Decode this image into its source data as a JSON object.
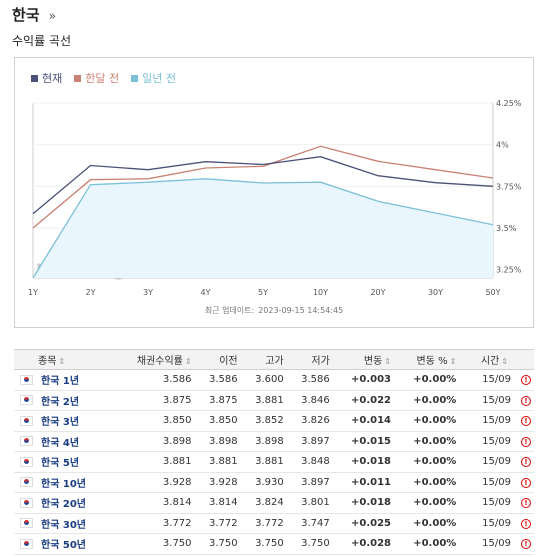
{
  "header": {
    "title": "한국",
    "breadcrumb_arrow": "»"
  },
  "subtitle": "수익률 곡선",
  "colors": {
    "current": "#4a5178",
    "month_ago": "#c98173",
    "year_ago": "#7cc0d8",
    "positive": "#d20000",
    "link": "#1a3c80"
  },
  "chart_data": {
    "type": "line",
    "x": [
      "1Y",
      "2Y",
      "3Y",
      "4Y",
      "5Y",
      "10Y",
      "20Y",
      "30Y",
      "50Y"
    ],
    "series": [
      {
        "name": "현재",
        "values": [
          3.586,
          3.875,
          3.85,
          3.898,
          3.881,
          3.928,
          3.814,
          3.772,
          3.75
        ]
      },
      {
        "name": "한달 전",
        "values": [
          3.5,
          3.79,
          3.795,
          3.86,
          3.87,
          3.99,
          3.9,
          3.85,
          3.8
        ]
      },
      {
        "name": "일년 전",
        "values": [
          3.2,
          3.76,
          3.775,
          3.795,
          3.77,
          3.775,
          3.66,
          3.59,
          3.52
        ]
      }
    ],
    "y_ticks": [
      "4.25%",
      "4%",
      "3.75%",
      "3.5%",
      "3.25%"
    ],
    "ylim": [
      3.2,
      4.28
    ],
    "grid": true,
    "legend_position": "top-left",
    "watermark": "Investing.com"
  },
  "updated": {
    "label": "최근 업데이트:",
    "value": "2023-09-15 14:54:45"
  },
  "table": {
    "headers": [
      "종목",
      "채권수익률",
      "이전",
      "고가",
      "저가",
      "변동",
      "변동 %",
      "시간"
    ],
    "rows": [
      {
        "name": "한국 1년",
        "yield": "3.586",
        "prev": "3.586",
        "high": "3.600",
        "low": "3.586",
        "chg": "+0.003",
        "chg_pct": "+0.00%",
        "time": "15/09"
      },
      {
        "name": "한국 2년",
        "yield": "3.875",
        "prev": "3.875",
        "high": "3.881",
        "low": "3.846",
        "chg": "+0.022",
        "chg_pct": "+0.00%",
        "time": "15/09"
      },
      {
        "name": "한국 3년",
        "yield": "3.850",
        "prev": "3.850",
        "high": "3.852",
        "low": "3.826",
        "chg": "+0.014",
        "chg_pct": "+0.00%",
        "time": "15/09"
      },
      {
        "name": "한국 4년",
        "yield": "3.898",
        "prev": "3.898",
        "high": "3.898",
        "low": "3.897",
        "chg": "+0.015",
        "chg_pct": "+0.00%",
        "time": "15/09"
      },
      {
        "name": "한국 5년",
        "yield": "3.881",
        "prev": "3.881",
        "high": "3.881",
        "low": "3.848",
        "chg": "+0.018",
        "chg_pct": "+0.00%",
        "time": "15/09"
      },
      {
        "name": "한국 10년",
        "yield": "3.928",
        "prev": "3.928",
        "high": "3.930",
        "low": "3.897",
        "chg": "+0.011",
        "chg_pct": "+0.00%",
        "time": "15/09"
      },
      {
        "name": "한국 20년",
        "yield": "3.814",
        "prev": "3.814",
        "high": "3.824",
        "low": "3.801",
        "chg": "+0.018",
        "chg_pct": "+0.00%",
        "time": "15/09"
      },
      {
        "name": "한국 30년",
        "yield": "3.772",
        "prev": "3.772",
        "high": "3.772",
        "low": "3.747",
        "chg": "+0.025",
        "chg_pct": "+0.00%",
        "time": "15/09"
      },
      {
        "name": "한국 50년",
        "yield": "3.750",
        "prev": "3.750",
        "high": "3.750",
        "low": "3.750",
        "chg": "+0.028",
        "chg_pct": "+0.00%",
        "time": "15/09"
      }
    ],
    "sort_icon": "sort-icon",
    "alert_icon": "alert-clock-icon"
  }
}
